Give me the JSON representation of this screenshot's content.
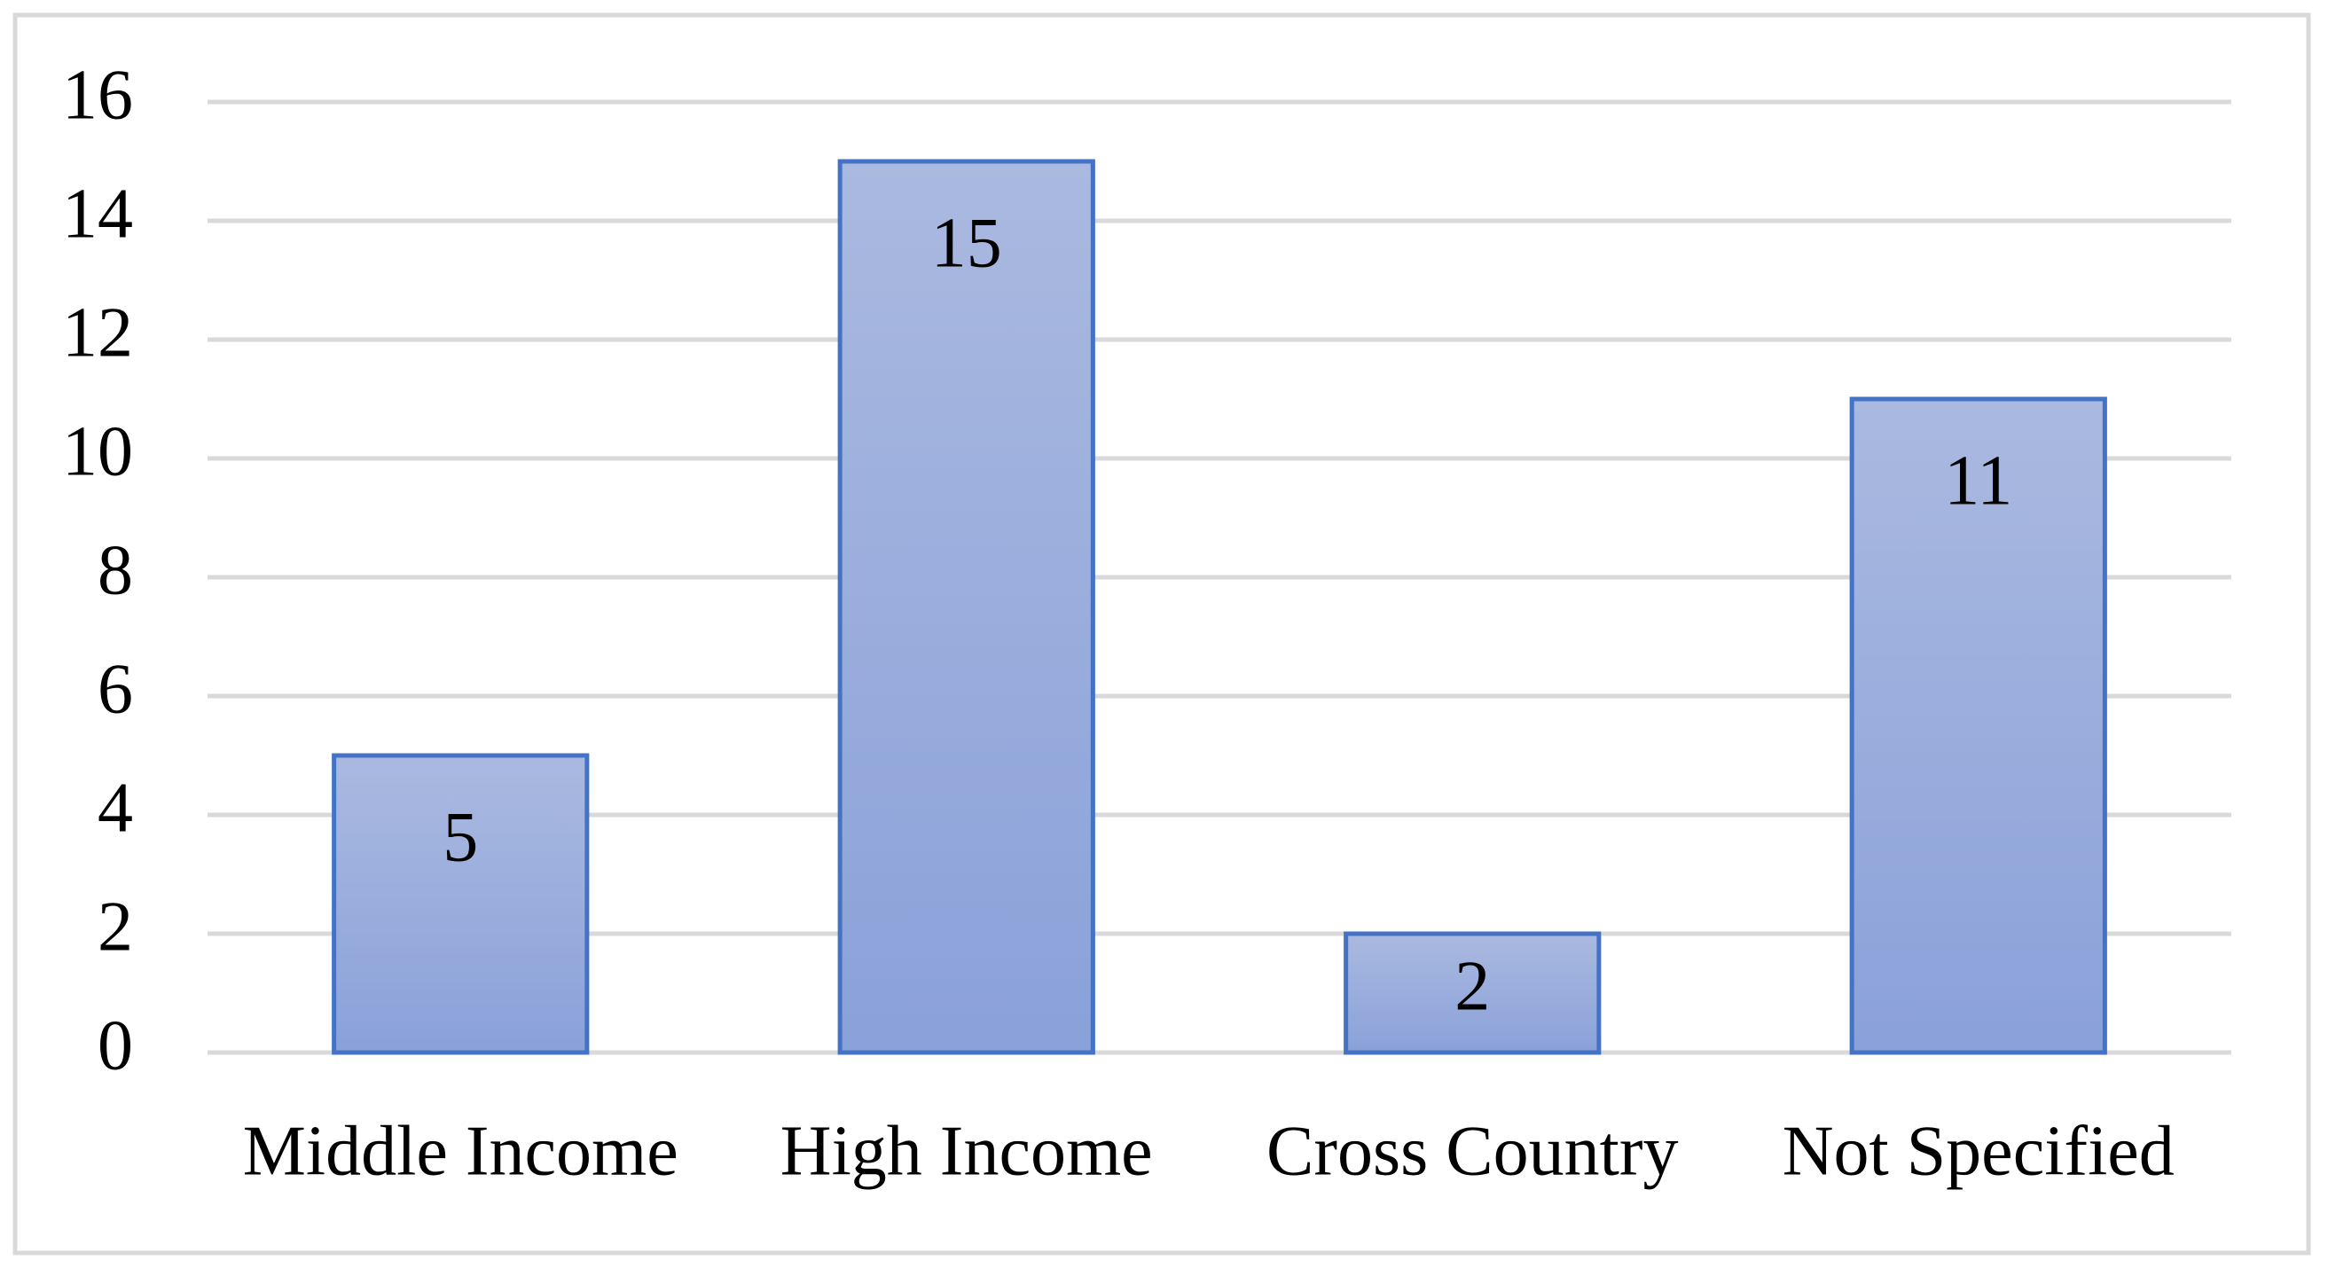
{
  "chart_data": {
    "type": "bar",
    "categories": [
      "Middle Income",
      "High Income",
      "Cross Country",
      "Not Specified"
    ],
    "values": [
      5,
      15,
      2,
      11
    ],
    "color": "#4472c4",
    "ylim": [
      0,
      16
    ],
    "yticks": [
      0,
      2,
      4,
      6,
      8,
      10,
      12,
      14,
      16
    ],
    "grid": true
  }
}
